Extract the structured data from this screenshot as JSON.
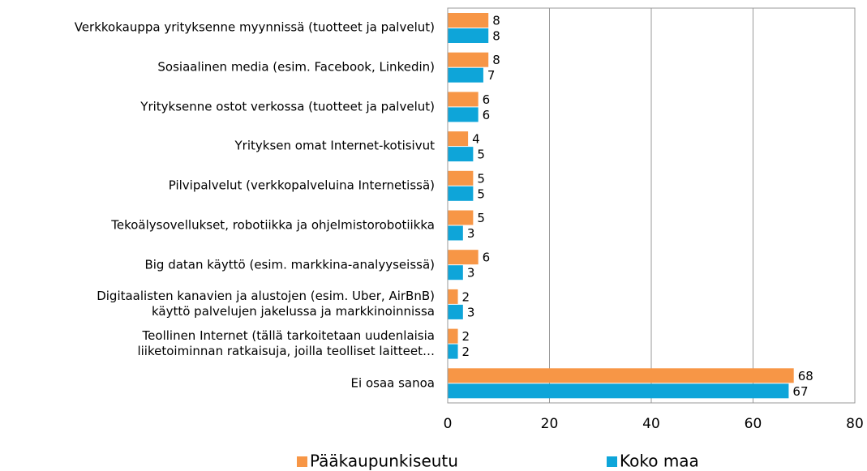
{
  "chart_data": {
    "type": "bar",
    "orientation": "horizontal",
    "categories": [
      "Verkkokauppa yrityksenne myynnissä (tuotteet ja palvelut)",
      "Sosiaalinen media (esim. Facebook, Linkedin)",
      "Yrityksenne ostot verkossa (tuotteet ja palvelut)",
      "Yrityksen omat Internet-kotisivut",
      "Pilvipalvelut  (verkkopalveluina Internetissä)",
      "Tekoälysovellukset, robotiikka ja ohjelmistorobotiikka",
      "Big datan käyttö (esim. markkina-analyyseissä)",
      "Digitaalisten kanavien ja alustojen (esim. Uber, AirBnB)\nkäyttö palvelujen jakelussa ja markkinoinnissa",
      "Teollinen Internet (tällä tarkoitetaan uudenlaisia\nliiketoiminnan ratkaisuja, joilla teolliset laitteet…",
      "Ei osaa sanoa"
    ],
    "series": [
      {
        "name": "Pääkaupunkiseutu",
        "color": "#f79646",
        "values": [
          8,
          8,
          6,
          4,
          5,
          5,
          6,
          2,
          2,
          68
        ]
      },
      {
        "name": "Koko maa",
        "color": "#0ea5d9",
        "values": [
          8,
          7,
          6,
          5,
          5,
          3,
          3,
          3,
          2,
          67
        ]
      }
    ],
    "xlim": [
      0,
      80
    ],
    "xticks": [
      0,
      20,
      40,
      60,
      80
    ],
    "grid": true,
    "legend": "bottom"
  }
}
